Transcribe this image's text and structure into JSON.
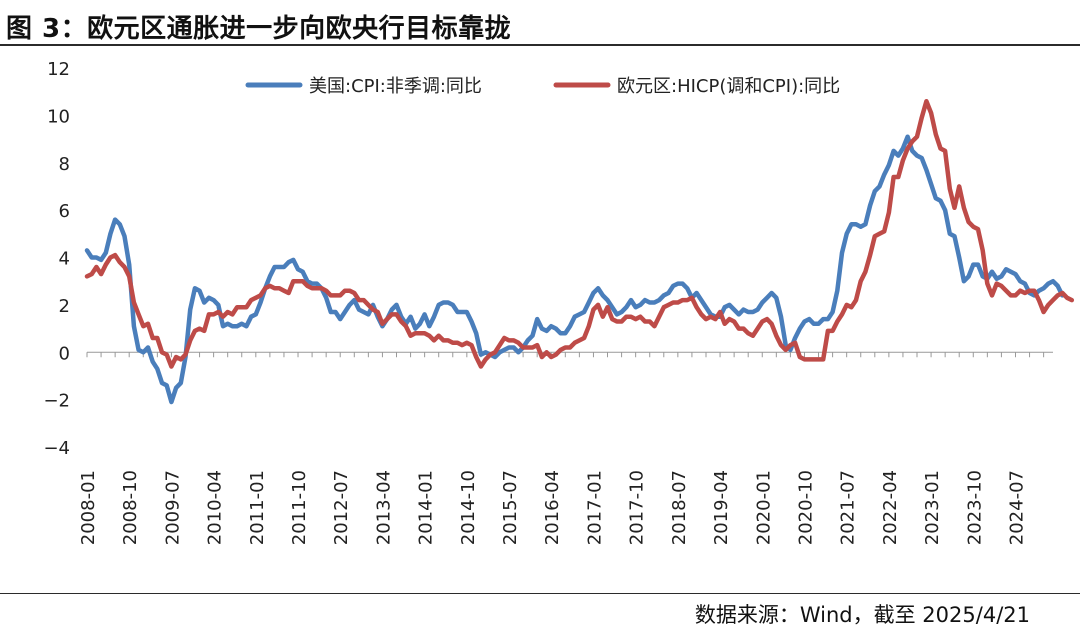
{
  "header": {
    "title": "图 3：欧元区通胀进一步向欧央行目标靠拢"
  },
  "footer": {
    "source": "数据来源：Wind，截至 2025/4/21"
  },
  "colors": {
    "us": "#4a7ebb",
    "ea": "#be4b48",
    "axis": "#999999"
  },
  "chart_data": {
    "type": "line",
    "title": "",
    "xlabel": "",
    "ylabel": "",
    "ylim": [
      -4,
      12
    ],
    "yticks": [
      -4,
      -2,
      0,
      2,
      4,
      6,
      8,
      10,
      12
    ],
    "grid": false,
    "legend_position": "top",
    "xticks": [
      "2008-01",
      "2008-10",
      "2009-07",
      "2010-04",
      "2011-01",
      "2011-10",
      "2012-07",
      "2013-04",
      "2014-01",
      "2014-10",
      "2015-07",
      "2016-04",
      "2017-01",
      "2017-10",
      "2018-07",
      "2019-04",
      "2020-01",
      "2020-10",
      "2021-07",
      "2022-04",
      "2023-01",
      "2023-10",
      "2024-07"
    ],
    "x_start": "2008-01",
    "x_end": "2025-03",
    "series": [
      {
        "name": "美国:CPI:非季调:同比",
        "color": "#4a7ebb",
        "values": [
          4.3,
          4.0,
          4.0,
          3.9,
          4.2,
          5.0,
          5.6,
          5.4,
          4.9,
          3.7,
          1.1,
          0.1,
          0.0,
          0.2,
          -0.4,
          -0.7,
          -1.3,
          -1.4,
          -2.1,
          -1.5,
          -1.3,
          -0.2,
          1.8,
          2.7,
          2.6,
          2.1,
          2.3,
          2.2,
          2.0,
          1.1,
          1.2,
          1.1,
          1.1,
          1.2,
          1.1,
          1.5,
          1.6,
          2.1,
          2.7,
          3.2,
          3.6,
          3.6,
          3.6,
          3.8,
          3.9,
          3.5,
          3.4,
          3.0,
          2.9,
          2.9,
          2.7,
          2.3,
          1.7,
          1.7,
          1.4,
          1.7,
          2.0,
          2.2,
          1.8,
          1.7,
          1.6,
          2.0,
          1.5,
          1.1,
          1.4,
          1.8,
          2.0,
          1.5,
          1.2,
          1.5,
          1.0,
          1.2,
          1.6,
          1.1,
          1.5,
          2.0,
          2.1,
          2.1,
          2.0,
          1.7,
          1.7,
          1.7,
          1.3,
          0.8,
          -0.1,
          0.0,
          -0.1,
          -0.2,
          0.0,
          0.1,
          0.2,
          0.2,
          0.0,
          0.2,
          0.5,
          0.7,
          1.4,
          1.0,
          0.9,
          1.1,
          1.0,
          0.8,
          0.8,
          1.1,
          1.5,
          1.6,
          1.7,
          2.1,
          2.5,
          2.7,
          2.4,
          2.2,
          1.9,
          1.6,
          1.7,
          1.9,
          2.2,
          1.9,
          2.0,
          2.2,
          2.1,
          2.1,
          2.2,
          2.4,
          2.5,
          2.8,
          2.9,
          2.9,
          2.7,
          2.3,
          2.5,
          2.2,
          1.9,
          1.6,
          1.5,
          1.5,
          1.9,
          2.0,
          1.8,
          1.6,
          1.8,
          1.7,
          1.7,
          1.8,
          2.1,
          2.3,
          2.5,
          2.3,
          1.5,
          0.3,
          0.1,
          0.6,
          1.0,
          1.3,
          1.4,
          1.2,
          1.2,
          1.4,
          1.4,
          1.7,
          2.6,
          4.2,
          5.0,
          5.4,
          5.4,
          5.3,
          5.4,
          6.2,
          6.8,
          7.0,
          7.5,
          7.9,
          8.5,
          8.3,
          8.6,
          9.1,
          8.5,
          8.3,
          8.2,
          7.7,
          7.1,
          6.5,
          6.4,
          6.0,
          5.0,
          4.9,
          4.0,
          3.0,
          3.2,
          3.7,
          3.7,
          3.2,
          3.1,
          3.4,
          3.1,
          3.2,
          3.5,
          3.4,
          3.3,
          3.0,
          2.9,
          2.5,
          2.4,
          2.6,
          2.7,
          2.9,
          3.0,
          2.8,
          2.4
        ]
      },
      {
        "name": "欧元区:HICP(调和CPI):同比",
        "color": "#be4b48",
        "values": [
          3.2,
          3.3,
          3.6,
          3.3,
          3.7,
          4.0,
          4.1,
          3.8,
          3.6,
          3.2,
          2.1,
          1.6,
          1.1,
          1.2,
          0.6,
          0.6,
          0.0,
          -0.1,
          -0.6,
          -0.2,
          -0.3,
          -0.1,
          0.5,
          0.9,
          1.0,
          0.9,
          1.6,
          1.6,
          1.7,
          1.5,
          1.7,
          1.6,
          1.9,
          1.9,
          1.9,
          2.2,
          2.3,
          2.4,
          2.7,
          2.8,
          2.7,
          2.7,
          2.6,
          2.5,
          3.0,
          3.0,
          3.0,
          2.8,
          2.7,
          2.7,
          2.7,
          2.6,
          2.4,
          2.4,
          2.4,
          2.6,
          2.6,
          2.5,
          2.2,
          2.2,
          2.0,
          1.8,
          1.7,
          1.2,
          1.4,
          1.6,
          1.6,
          1.3,
          1.1,
          0.7,
          0.8,
          0.8,
          0.8,
          0.7,
          0.5,
          0.7,
          0.5,
          0.5,
          0.4,
          0.4,
          0.3,
          0.4,
          0.3,
          -0.2,
          -0.6,
          -0.3,
          -0.1,
          0.0,
          0.3,
          0.6,
          0.5,
          0.5,
          0.4,
          0.2,
          0.2,
          0.2,
          0.3,
          -0.2,
          0.0,
          -0.2,
          -0.1,
          0.1,
          0.2,
          0.2,
          0.4,
          0.5,
          0.6,
          1.1,
          1.8,
          2.0,
          1.5,
          1.9,
          1.4,
          1.3,
          1.3,
          1.5,
          1.5,
          1.4,
          1.5,
          1.3,
          1.3,
          1.1,
          1.5,
          1.9,
          2.0,
          2.1,
          2.1,
          2.2,
          2.2,
          2.3,
          1.9,
          1.6,
          1.4,
          1.5,
          1.4,
          1.7,
          1.2,
          1.4,
          1.3,
          1.0,
          1.0,
          0.8,
          0.7,
          1.0,
          1.3,
          1.4,
          1.2,
          0.7,
          0.3,
          0.1,
          0.3,
          0.4,
          -0.2,
          -0.3,
          -0.3,
          -0.3,
          -0.3,
          -0.3,
          0.9,
          0.9,
          1.3,
          1.6,
          2.0,
          1.9,
          2.2,
          3.0,
          3.4,
          4.1,
          4.9,
          5.0,
          5.1,
          5.9,
          7.4,
          7.4,
          8.1,
          8.6,
          8.9,
          9.1,
          9.9,
          10.6,
          10.1,
          9.2,
          8.6,
          8.5,
          6.9,
          6.1,
          7.0,
          6.1,
          5.5,
          5.3,
          5.2,
          4.3,
          2.9,
          2.4,
          2.9,
          2.8,
          2.6,
          2.4,
          2.4,
          2.6,
          2.5,
          2.6,
          2.6,
          2.2,
          1.7,
          2.0,
          2.2,
          2.4,
          2.5,
          2.3,
          2.2
        ]
      }
    ]
  }
}
